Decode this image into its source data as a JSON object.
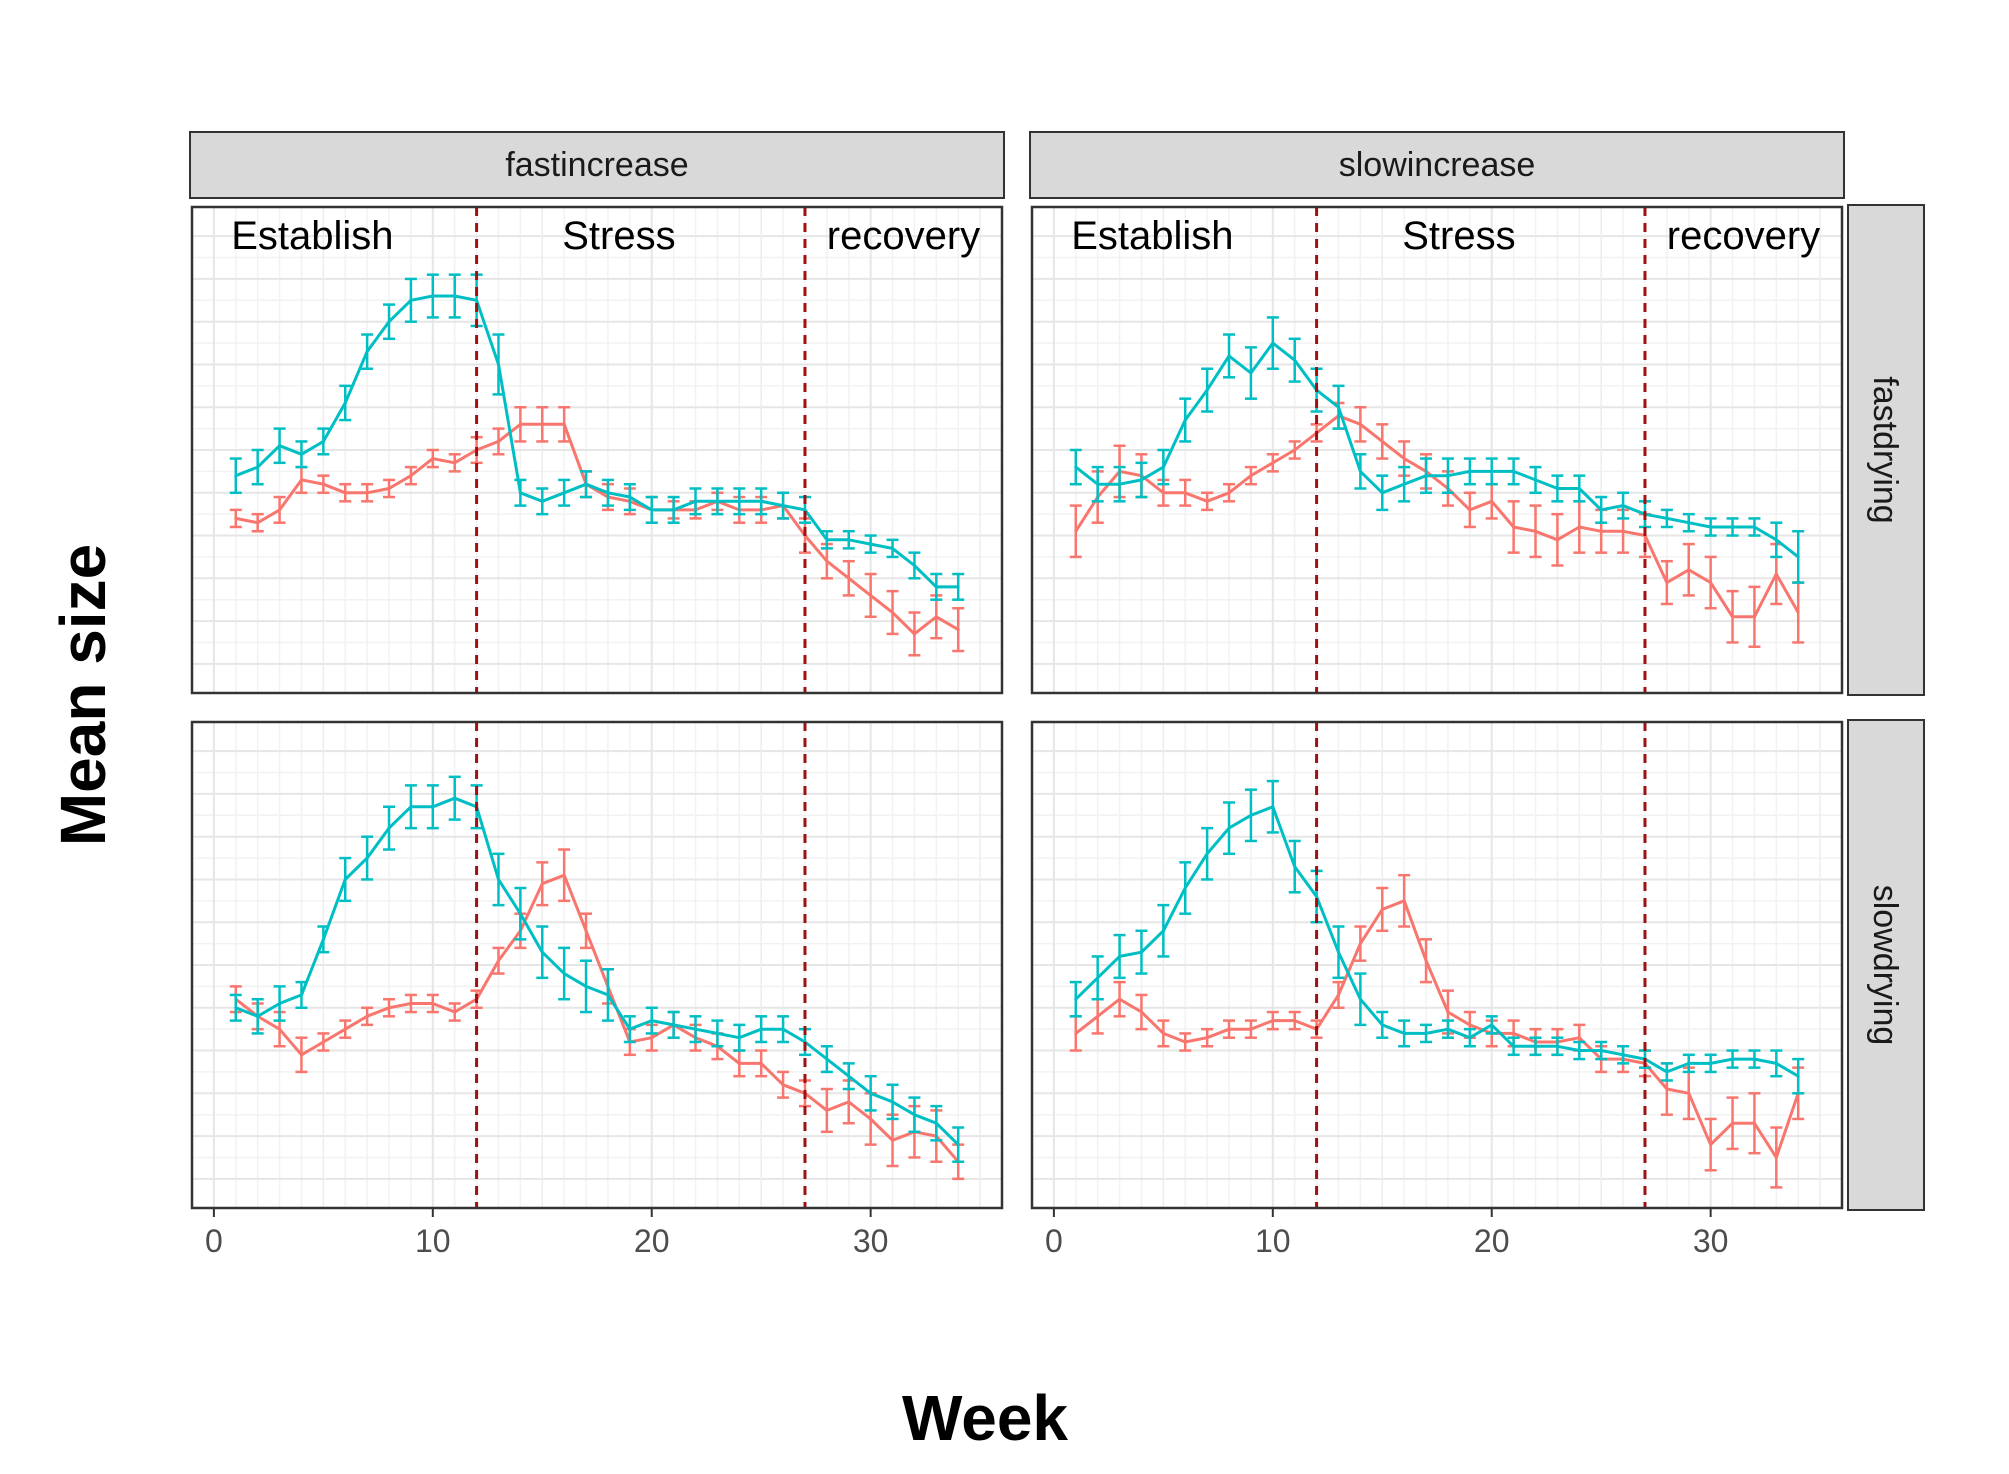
{
  "chart_data": {
    "type": "line",
    "xlabel": "Week",
    "ylabel": "Mean size",
    "xlim": [
      -1,
      36
    ],
    "xticks": [
      0,
      10,
      20,
      30
    ],
    "ylim": [
      0,
      100
    ],
    "y_tick_labels_shown": false,
    "grid": true,
    "legend": "none",
    "error_bars": true,
    "facet_cols": [
      "fastincrease",
      "slowincrease"
    ],
    "facet_rows": [
      "fastdrying",
      "slowdrying"
    ],
    "phase_boundaries": [
      12,
      27
    ],
    "phase_labels": [
      {
        "label": "Establish",
        "x": 4.5
      },
      {
        "label": "Stress",
        "x": 18.5
      },
      {
        "label": "recovery",
        "x": 31.5
      }
    ],
    "colors": {
      "red": "#F8766D",
      "cyan": "#00BFC4",
      "phase_line": "#A01010",
      "strip": "#D9D9D9"
    },
    "x": [
      1,
      2,
      3,
      4,
      5,
      6,
      7,
      8,
      9,
      10,
      11,
      12,
      13,
      14,
      15,
      16,
      17,
      18,
      19,
      20,
      21,
      22,
      23,
      24,
      25,
      26,
      27,
      28,
      29,
      30,
      31,
      32,
      33,
      34
    ],
    "panels": [
      {
        "col": "fastincrease",
        "row": "fastdrying",
        "series": [
          {
            "color": "red",
            "values": [
              34,
              33,
              36,
              43,
              42,
              40,
              40,
              41,
              44,
              48,
              47,
              50,
              52,
              56,
              56,
              56,
              42,
              39,
              38,
              36,
              36,
              36,
              38,
              36,
              36,
              37,
              30,
              24,
              20,
              16,
              12,
              7,
              11,
              8
            ],
            "errors": [
              2,
              2,
              3,
              3,
              2,
              2,
              2,
              2,
              2,
              2,
              2,
              3,
              3,
              4,
              4,
              4,
              3,
              3,
              3,
              3,
              2,
              2,
              2,
              3,
              3,
              3,
              4,
              4,
              4,
              5,
              5,
              5,
              5,
              5
            ]
          },
          {
            "color": "cyan",
            "values": [
              44,
              46,
              51,
              49,
              52,
              61,
              73,
              80,
              85,
              86,
              86,
              85,
              70,
              40,
              38,
              40,
              42,
              40,
              39,
              36,
              36,
              38,
              38,
              38,
              38,
              37,
              36,
              29,
              29,
              28,
              27,
              23,
              18,
              18
            ],
            "errors": [
              4,
              4,
              4,
              3,
              3,
              4,
              4,
              4,
              5,
              5,
              5,
              6,
              7,
              3,
              3,
              3,
              3,
              3,
              3,
              3,
              3,
              3,
              3,
              3,
              3,
              3,
              3,
              2,
              2,
              2,
              2,
              3,
              3,
              3
            ]
          }
        ]
      },
      {
        "col": "slowincrease",
        "row": "fastdrying",
        "series": [
          {
            "color": "red",
            "values": [
              31,
              39,
              45,
              44,
              40,
              40,
              38,
              40,
              44,
              47,
              50,
              54,
              58,
              56,
              52,
              48,
              45,
              41,
              36,
              38,
              32,
              31,
              29,
              32,
              31,
              31,
              30,
              19,
              22,
              19,
              11,
              11,
              21,
              12
            ],
            "errors": [
              6,
              6,
              6,
              5,
              3,
              3,
              2,
              2,
              2,
              2,
              2,
              2,
              3,
              4,
              4,
              4,
              4,
              4,
              4,
              4,
              6,
              6,
              6,
              6,
              5,
              5,
              5,
              5,
              6,
              6,
              6,
              7,
              7,
              7
            ]
          },
          {
            "color": "cyan",
            "values": [
              46,
              42,
              42,
              43,
              46,
              57,
              64,
              72,
              68,
              75,
              71,
              64,
              60,
              45,
              40,
              42,
              44,
              44,
              45,
              45,
              45,
              43,
              41,
              41,
              36,
              37,
              35,
              34,
              33,
              32,
              32,
              32,
              29,
              25
            ],
            "errors": [
              4,
              4,
              4,
              4,
              4,
              5,
              5,
              5,
              6,
              6,
              5,
              5,
              5,
              4,
              4,
              4,
              4,
              4,
              3,
              3,
              3,
              3,
              3,
              3,
              3,
              3,
              3,
              2,
              2,
              2,
              2,
              2,
              4,
              6
            ]
          }
        ]
      },
      {
        "col": "fastincrease",
        "row": "slowdrying",
        "series": [
          {
            "color": "red",
            "values": [
              42,
              38,
              35,
              29,
              32,
              35,
              38,
              40,
              41,
              41,
              39,
              42,
              51,
              58,
              69,
              71,
              58,
              45,
              32,
              33,
              36,
              33,
              31,
              27,
              27,
              22,
              20,
              16,
              18,
              14,
              9,
              11,
              10,
              4
            ],
            "errors": [
              3,
              3,
              4,
              4,
              2,
              2,
              2,
              2,
              2,
              2,
              2,
              2,
              3,
              4,
              5,
              6,
              4,
              4,
              3,
              3,
              3,
              3,
              3,
              3,
              3,
              3,
              3,
              5,
              5,
              6,
              6,
              6,
              6,
              4
            ]
          },
          {
            "color": "cyan",
            "values": [
              40,
              38,
              41,
              43,
              56,
              70,
              75,
              82,
              87,
              87,
              89,
              87,
              70,
              62,
              53,
              48,
              45,
              43,
              35,
              37,
              36,
              35,
              34,
              33,
              35,
              35,
              32,
              28,
              24,
              20,
              18,
              15,
              13,
              8
            ],
            "errors": [
              3,
              4,
              4,
              3,
              3,
              5,
              5,
              5,
              5,
              5,
              5,
              5,
              6,
              6,
              6,
              6,
              6,
              6,
              3,
              3,
              3,
              3,
              3,
              3,
              3,
              3,
              3,
              3,
              3,
              4,
              4,
              4,
              4,
              4
            ]
          }
        ]
      },
      {
        "col": "slowincrease",
        "row": "slowdrying",
        "series": [
          {
            "color": "red",
            "values": [
              34,
              38,
              42,
              39,
              34,
              32,
              33,
              35,
              35,
              37,
              37,
              35,
              43,
              55,
              63,
              65,
              51,
              39,
              36,
              34,
              34,
              32,
              32,
              33,
              28,
              28,
              27,
              21,
              20,
              8,
              13,
              13,
              5,
              20
            ],
            "errors": [
              4,
              4,
              4,
              4,
              3,
              2,
              2,
              2,
              2,
              2,
              2,
              2,
              3,
              4,
              5,
              6,
              5,
              5,
              3,
              3,
              3,
              3,
              3,
              3,
              3,
              3,
              3,
              6,
              6,
              6,
              6,
              7,
              7,
              6
            ]
          },
          {
            "color": "cyan",
            "values": [
              42,
              47,
              52,
              53,
              58,
              68,
              76,
              82,
              85,
              87,
              73,
              66,
              53,
              42,
              36,
              34,
              34,
              35,
              33,
              36,
              31,
              31,
              31,
              30,
              30,
              29,
              28,
              25,
              27,
              27,
              28,
              28,
              27,
              24
            ],
            "errors": [
              4,
              5,
              5,
              5,
              6,
              6,
              6,
              6,
              6,
              6,
              6,
              6,
              6,
              6,
              3,
              3,
              2,
              2,
              2,
              2,
              2,
              2,
              2,
              2,
              2,
              2,
              2,
              2,
              2,
              2,
              2,
              2,
              3,
              4
            ]
          }
        ]
      }
    ]
  }
}
